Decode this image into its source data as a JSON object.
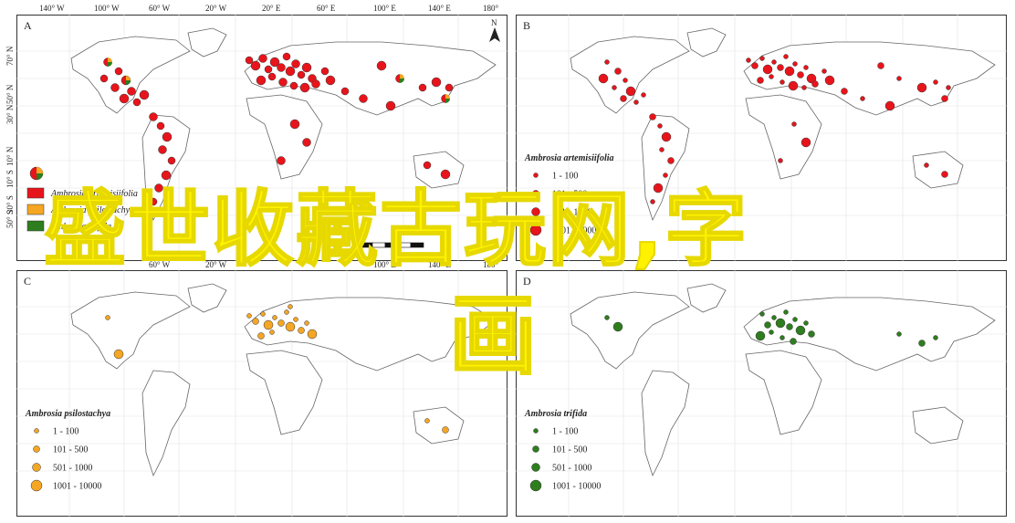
{
  "top_axis_labels": [
    "140° W",
    "100° W",
    "60° W",
    "20° W",
    "20° E",
    "60° E",
    "100° E",
    "140° E",
    "180°"
  ],
  "left_axis_labels": [
    "70° N",
    "50° N",
    "30° N",
    "10° N",
    "10° S",
    "30° S",
    "50° S"
  ],
  "bottom_axis_labels": [
    "60° W",
    "20° W",
    "100° E",
    "140° E",
    "180°"
  ],
  "north_arrow": "N",
  "panels": [
    {
      "letter": "A",
      "legend_items": [
        {
          "label": "Ambrosia artemisiifolia",
          "color": "#e8141b"
        },
        {
          "label": "Ambrosia psilostachya",
          "color": "#f5a623"
        },
        {
          "label": "Ambrosia trifida",
          "color": "#2e7d1e"
        }
      ]
    },
    {
      "letter": "B",
      "legend_title": "Ambrosia artemisiifolia",
      "color": "#e8141b",
      "legend_items": [
        "1 - 100",
        "101 - 500",
        "501 - 1000",
        "1001 - 10000"
      ]
    },
    {
      "letter": "C",
      "legend_title": "Ambrosia psilostachya",
      "color": "#f5a623",
      "legend_items": [
        "1 - 100",
        "101 - 500",
        "501 - 1000",
        "1001 - 10000"
      ]
    },
    {
      "letter": "D",
      "legend_title": "Ambrosia trifida",
      "color": "#2e7d1e",
      "legend_items": [
        "1 - 100",
        "101 - 500",
        "501 - 1000",
        "1001 - 10000"
      ]
    }
  ],
  "overlay": {
    "line1": "盛世收藏古玩网,字",
    "line2": "画",
    "color": "#fff200"
  }
}
